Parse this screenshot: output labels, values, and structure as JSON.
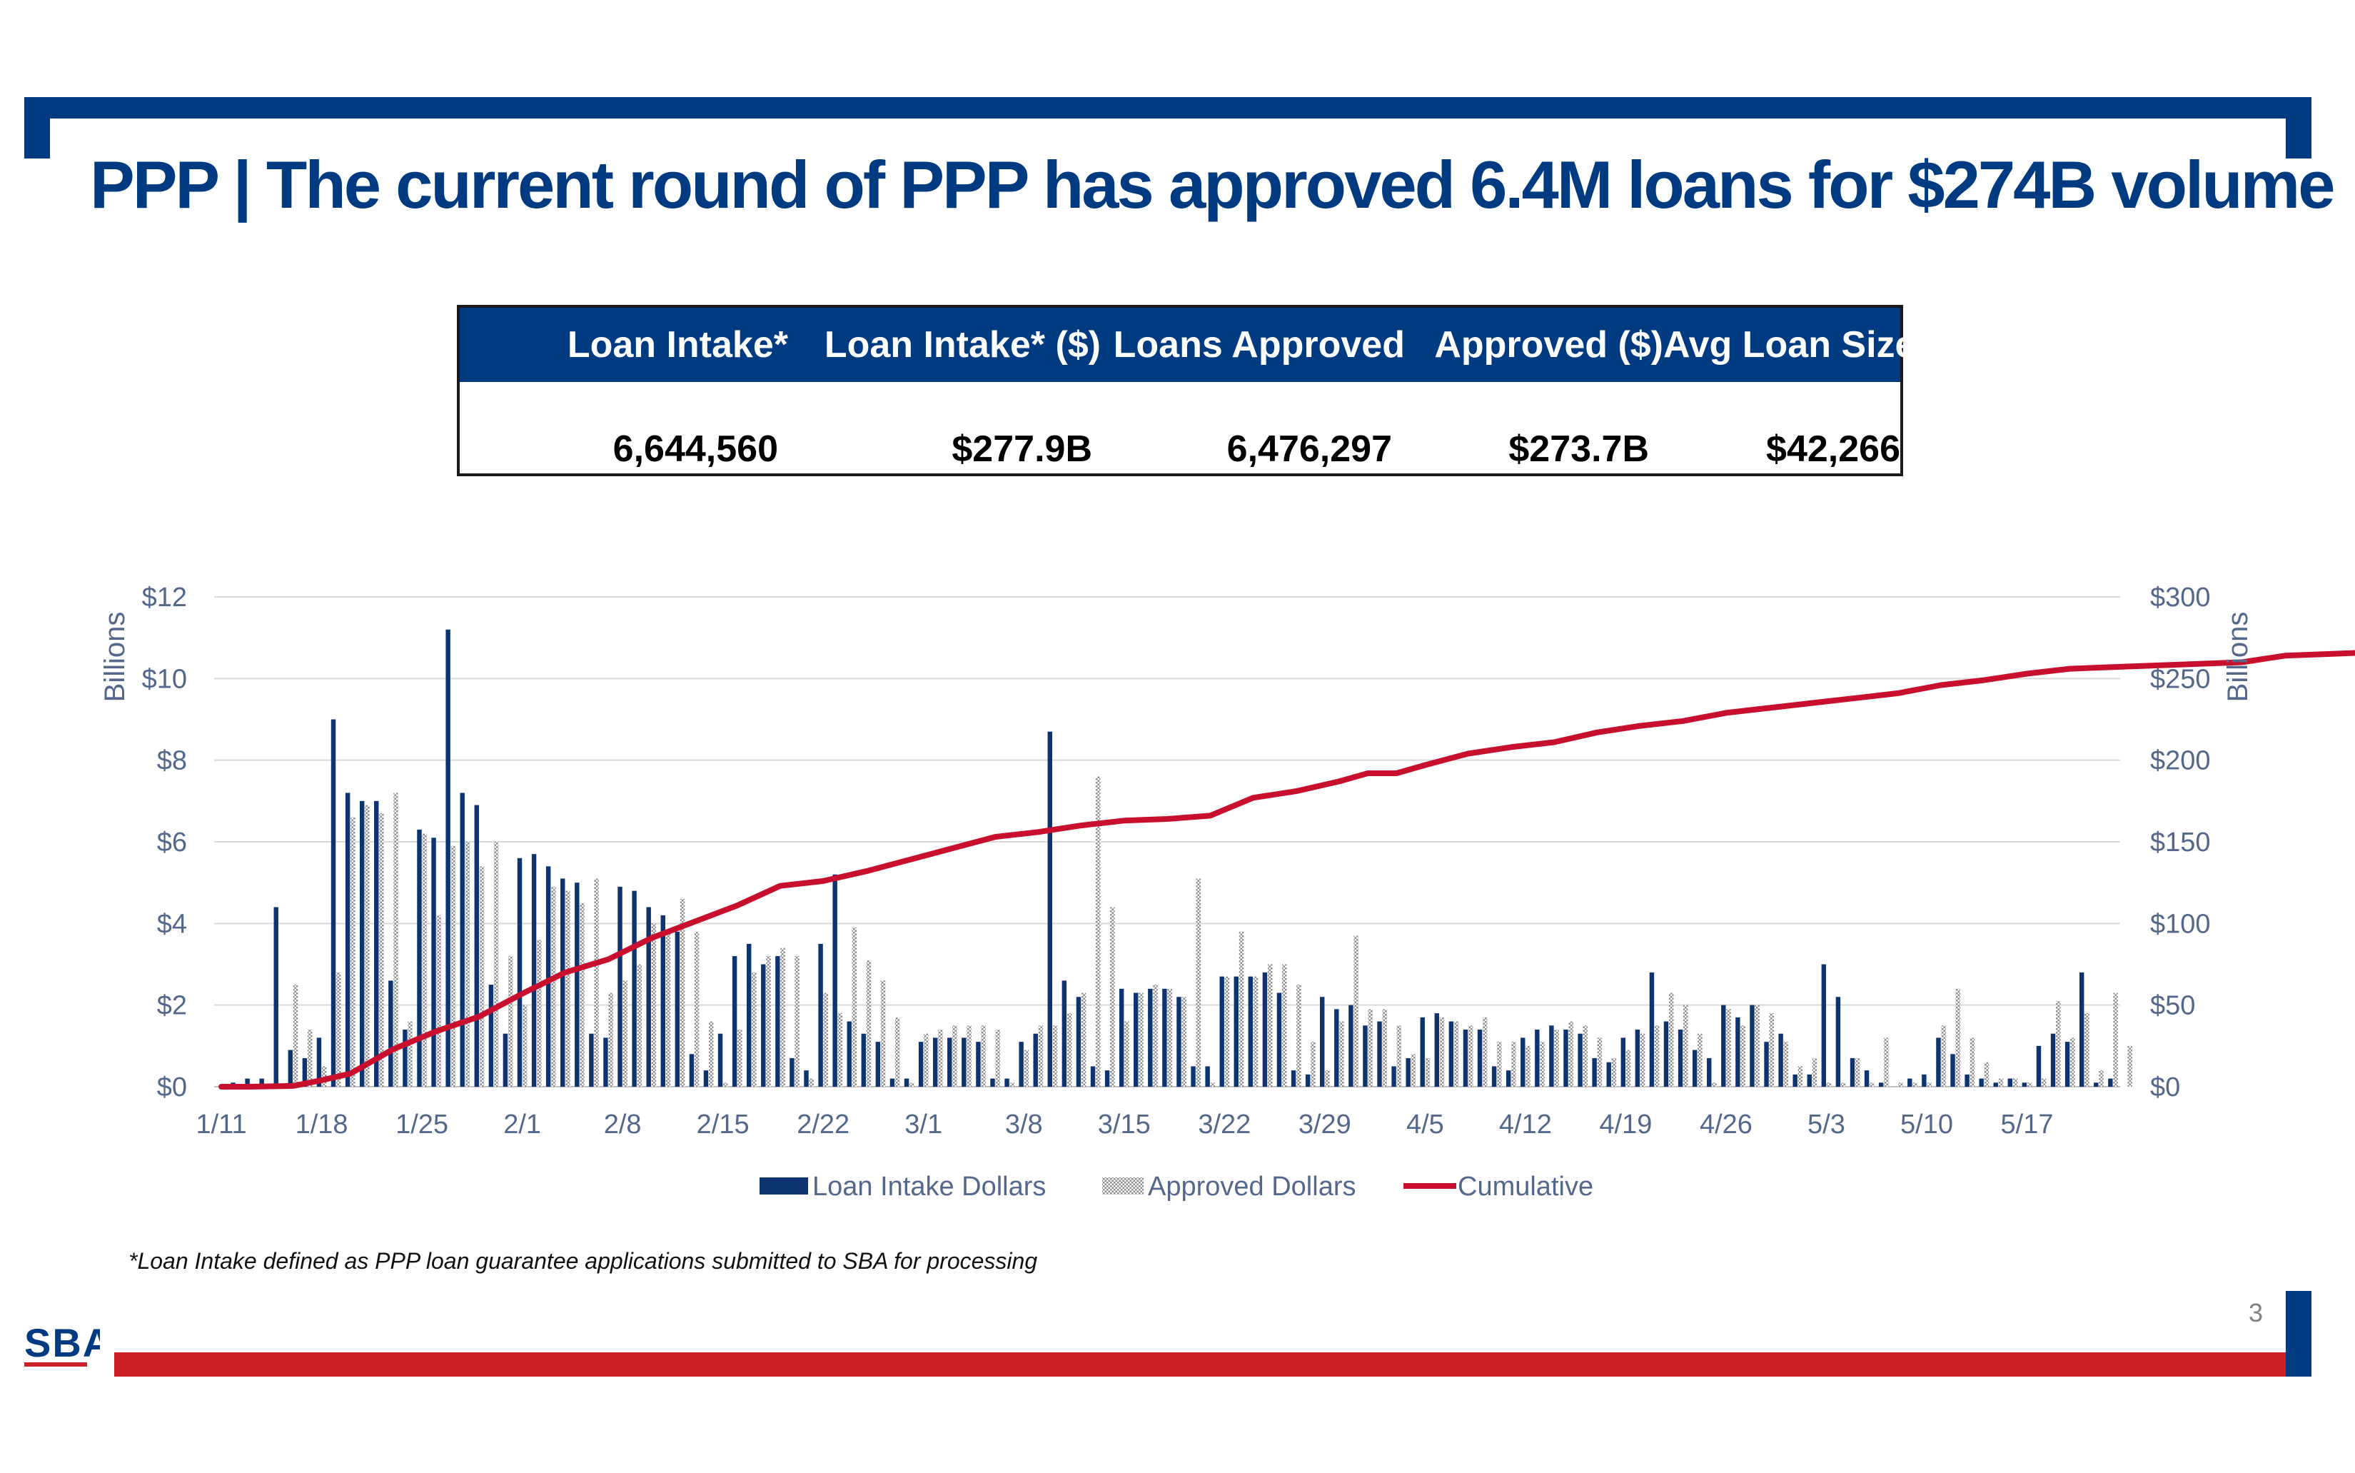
{
  "title": "PPP | The current round of PPP has approved 6.4M loans for $274B volume",
  "summary": {
    "headers": [
      "Loan Intake*",
      "Loan Intake* ($)",
      "Loans Approved",
      "Approved ($)",
      "Avg Loan Size"
    ],
    "values": [
      "6,644,560",
      "$277.9B",
      "6,476,297",
      "$273.7B",
      "$42,266"
    ]
  },
  "footnote": "*Loan Intake defined as PPP loan guarantee applications submitted to SBA for processing",
  "page_number": "3",
  "logo": "SBA",
  "colors": {
    "navy": "#003a80",
    "red": "#cc1f2a",
    "intake_bar": "#0e3470",
    "approved_bar": "#a6a6a6",
    "cumulative_line": "#c8102e"
  },
  "chart_data": {
    "type": "bar",
    "title": "",
    "y_left_label": "Billions",
    "y_right_label": "Billions",
    "y_left_ticks": [
      "$0",
      "$2",
      "$4",
      "$6",
      "$8",
      "$10",
      "$12"
    ],
    "y_right_ticks": [
      "$0",
      "$50",
      "$100",
      "$150",
      "$200",
      "$250",
      "$300"
    ],
    "y_left_range": [
      0,
      12
    ],
    "y_right_range": [
      0,
      300
    ],
    "x_start": "1/11",
    "x_end": "5/23",
    "x_tick_labels": [
      "1/11",
      "1/18",
      "1/25",
      "2/1",
      "2/8",
      "2/15",
      "2/22",
      "3/1",
      "3/8",
      "3/15",
      "3/22",
      "3/29",
      "4/5",
      "4/12",
      "4/19",
      "4/26",
      "5/3",
      "5/10",
      "5/17"
    ],
    "gridlines": true,
    "legend_position": "bottom",
    "series": [
      {
        "name": "Loan Intake Dollars",
        "style": "bar",
        "values": [
          0,
          0.1,
          0.2,
          0.2,
          4.4,
          0.9,
          0.7,
          1.2,
          9.0,
          7.2,
          7.0,
          7.0,
          2.6,
          1.4,
          6.3,
          6.1,
          11.2,
          7.2,
          6.9,
          2.5,
          1.3,
          5.6,
          5.7,
          5.4,
          5.1,
          5.0,
          1.3,
          1.2,
          4.9,
          4.8,
          4.4,
          4.2,
          3.8,
          0.8,
          0.4,
          1.3,
          3.2,
          3.5,
          3.0,
          3.2,
          0.7,
          0.4,
          3.5,
          5.2,
          1.6,
          1.3,
          1.1,
          0.2,
          0.2,
          1.1,
          1.2,
          1.2,
          1.2,
          1.1,
          0.2,
          0.2,
          1.1,
          1.3,
          8.7,
          2.6,
          2.2,
          0.5,
          0.4,
          2.4,
          2.3,
          2.4,
          2.4,
          2.2,
          0.5,
          0.5,
          2.7,
          2.7,
          2.7,
          2.8,
          2.3,
          0.4,
          0.3,
          2.2,
          1.9,
          2.0,
          1.5,
          1.6,
          0.5,
          0.7,
          1.7,
          1.8,
          1.6,
          1.4,
          1.4,
          0.5,
          0.4,
          1.2,
          1.4,
          1.5,
          1.4,
          1.3,
          0.7,
          0.6,
          1.2,
          1.4,
          2.8,
          1.6,
          1.4,
          0.9,
          0.7,
          2.0,
          1.7,
          2.0,
          1.1,
          1.3,
          0.3,
          0.3,
          3.0,
          2.2,
          0.7,
          0.4,
          0.1,
          0.0,
          0.2,
          0.3,
          1.2,
          0.8,
          0.3,
          0.2,
          0.1,
          0.2,
          0.1,
          1.0,
          1.3,
          1.1,
          2.8,
          0.1,
          0.2
        ],
        "color": "#0e3470"
      },
      {
        "name": "Approved Dollars",
        "style": "hatched-bar",
        "values": [
          0,
          0,
          0,
          0,
          0,
          2.5,
          1.4,
          0.5,
          2.8,
          6.6,
          6.9,
          6.7,
          7.2,
          1.6,
          6.2,
          4.2,
          5.9,
          6.0,
          5.4,
          6.0,
          3.2,
          2.0,
          3.6,
          4.9,
          4.8,
          4.5,
          5.1,
          2.3,
          2.6,
          3.0,
          4.0,
          3.8,
          4.6,
          3.8,
          1.6,
          0.1,
          1.4,
          2.8,
          3.2,
          3.4,
          3.2,
          0.2,
          2.3,
          1.8,
          3.9,
          3.1,
          2.6,
          1.7,
          0.1,
          1.3,
          1.4,
          1.5,
          1.5,
          1.5,
          1.4,
          0.1,
          0.9,
          1.5,
          1.5,
          1.8,
          2.3,
          7.6,
          4.4,
          1.6,
          2.3,
          2.5,
          2.4,
          2.2,
          5.1,
          0.1,
          2.7,
          3.8,
          2.7,
          3.0,
          3.0,
          2.5,
          1.1,
          0.4,
          1.6,
          3.7,
          1.9,
          1.9,
          1.5,
          0.8,
          0.7,
          1.7,
          1.6,
          1.5,
          1.7,
          1.1,
          1.1,
          1.0,
          1.1,
          1.4,
          1.6,
          1.5,
          1.2,
          0.7,
          0.9,
          1.3,
          1.5,
          2.3,
          2.0,
          1.3,
          0.1,
          1.9,
          1.5,
          2.0,
          1.8,
          1.1,
          0.5,
          0.7,
          0.1,
          0.1,
          0.7,
          0.1,
          1.2,
          0.1,
          0.1,
          0.1,
          1.5,
          2.4,
          1.2,
          0.6,
          0.2,
          0.2,
          0.1,
          0.2,
          2.1,
          1.2,
          1.8,
          0.4,
          2.3,
          1.0
        ],
        "color": "#a6a6a6"
      },
      {
        "name": "Cumulative",
        "style": "line",
        "axis": "right",
        "points": [
          [
            0,
            0
          ],
          [
            2,
            0
          ],
          [
            5,
            0.5
          ],
          [
            7,
            4
          ],
          [
            9,
            8
          ],
          [
            12,
            23
          ],
          [
            15,
            34
          ],
          [
            18,
            43
          ],
          [
            21,
            57
          ],
          [
            24,
            70
          ],
          [
            27,
            78
          ],
          [
            30,
            91
          ],
          [
            33,
            101
          ],
          [
            36,
            111
          ],
          [
            39,
            123
          ],
          [
            42,
            126
          ],
          [
            45,
            132
          ],
          [
            48,
            139
          ],
          [
            51,
            146
          ],
          [
            54,
            153
          ],
          [
            57,
            156
          ],
          [
            60,
            160
          ],
          [
            63,
            163
          ],
          [
            66,
            164
          ],
          [
            69,
            166
          ],
          [
            72,
            177
          ],
          [
            75,
            181
          ],
          [
            78,
            187
          ],
          [
            80,
            192
          ],
          [
            82,
            192
          ],
          [
            84,
            197
          ],
          [
            87,
            204
          ],
          [
            90,
            208
          ],
          [
            93,
            211
          ],
          [
            96,
            217
          ],
          [
            99,
            221
          ],
          [
            102,
            224
          ],
          [
            105,
            229
          ],
          [
            108,
            232
          ],
          [
            111,
            235
          ],
          [
            114,
            238
          ],
          [
            117,
            241
          ],
          [
            120,
            246
          ],
          [
            123,
            249
          ],
          [
            126,
            253
          ],
          [
            129,
            256
          ],
          [
            132,
            257
          ],
          [
            135,
            258
          ],
          [
            138,
            259
          ],
          [
            141,
            260
          ],
          [
            144,
            264
          ],
          [
            147,
            265
          ],
          [
            150,
            266
          ],
          [
            153,
            268
          ],
          [
            156,
            271
          ],
          [
            158,
            273
          ]
        ]
      }
    ]
  }
}
